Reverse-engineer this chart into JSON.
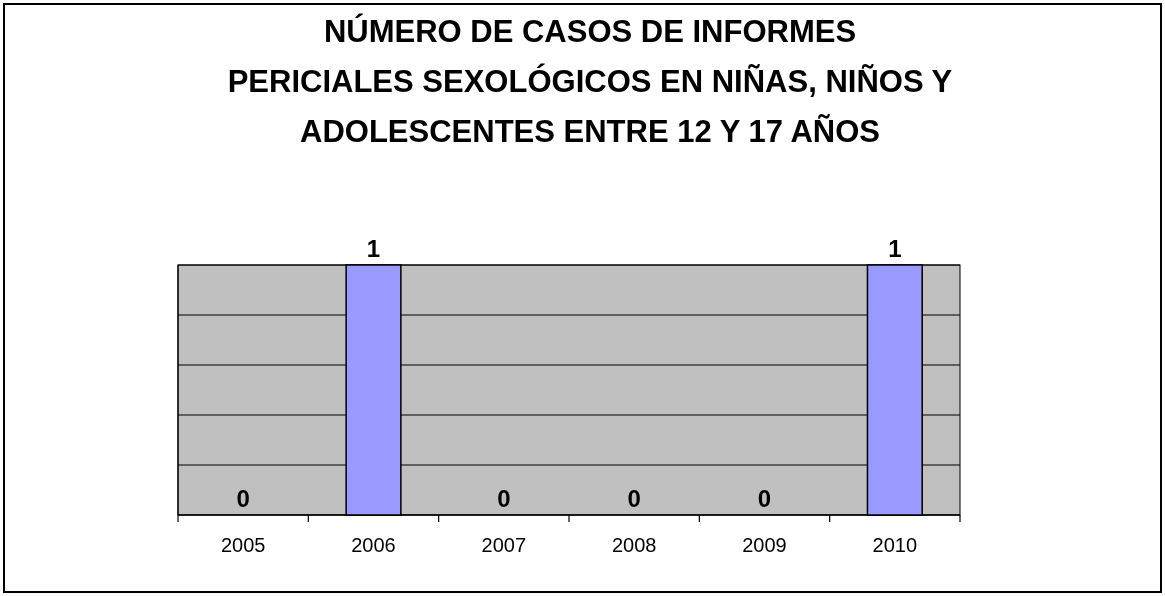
{
  "chart_data": {
    "type": "bar",
    "title": "NÚMERO DE CASOS  DE INFORMES\nPERICIALES SEXOLÓGICOS EN NIÑAS, NIÑOS Y\nADOLESCENTES ENTRE 12 Y 17 AÑOS",
    "categories": [
      "2005",
      "2006",
      "2007",
      "2008",
      "2009",
      "2010"
    ],
    "values": [
      0,
      1,
      0,
      0,
      0,
      1
    ],
    "color": "#9999ff",
    "ylim": [
      0,
      1
    ],
    "yticks": [
      {
        "value": 0,
        "label": null
      },
      {
        "value": 0.2,
        "label": null
      },
      {
        "value": 0.4,
        "label": null
      },
      {
        "value": 0.6,
        "label": null
      },
      {
        "value": 0.8,
        "label": null
      },
      {
        "value": 1,
        "label": null
      }
    ],
    "tick_labels": "x",
    "grid": "y",
    "data_labels": true
  }
}
